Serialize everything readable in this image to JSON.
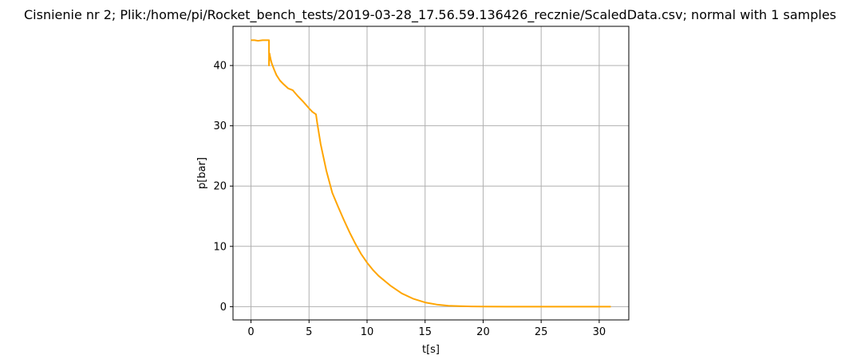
{
  "chart_data": {
    "type": "line",
    "title": "Cisnienie nr 2; Plik:/home/pi/Rocket_bench_tests/2019-03-28_17.56.59.136426_recznie/ScaledData.csv; normal with 1 samples",
    "xlabel": "t[s]",
    "ylabel": "p[bar]",
    "xlim": [
      -1.55,
      32.55
    ],
    "ylim": [
      -2.2,
      46.5
    ],
    "xticks": [
      0,
      5,
      10,
      15,
      20,
      25,
      30
    ],
    "yticks": [
      0,
      10,
      20,
      30,
      40
    ],
    "grid": true,
    "legend": "none",
    "series": [
      {
        "color": "#ffa500",
        "x": [
          0,
          0.3,
          0.6,
          1.0,
          1.3,
          1.55,
          1.55,
          1.6,
          1.65,
          1.7,
          1.8,
          2.0,
          2.2,
          2.5,
          2.8,
          3.2,
          3.6,
          4.0,
          4.5,
          5.0,
          5.3,
          5.6,
          5.7,
          6.0,
          6.5,
          7.0,
          7.5,
          8.0,
          8.5,
          9.0,
          9.5,
          10.0,
          10.5,
          11.0,
          12.0,
          13.0,
          14.0,
          15.0,
          16.0,
          17.0,
          18.0,
          19.0,
          20.0,
          22.0,
          25.0,
          28.0,
          31.0
        ],
        "y": [
          44.2,
          44.2,
          44.1,
          44.2,
          44.2,
          44.2,
          40.0,
          42.0,
          41.5,
          41.0,
          40.3,
          39.3,
          38.4,
          37.5,
          36.9,
          36.2,
          35.9,
          35.0,
          34.0,
          32.9,
          32.3,
          31.9,
          30.5,
          27.0,
          22.5,
          18.9,
          16.6,
          14.4,
          12.3,
          10.4,
          8.7,
          7.3,
          6.1,
          5.1,
          3.5,
          2.2,
          1.3,
          0.7,
          0.35,
          0.15,
          0.07,
          0.03,
          0.01,
          0.0,
          0.0,
          0.0,
          0.0
        ]
      }
    ]
  }
}
